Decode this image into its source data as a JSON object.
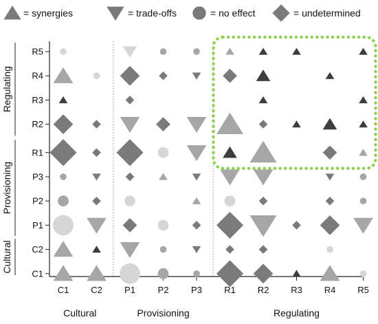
{
  "chart_data": {
    "type": "matrix-glyph",
    "legend": [
      {
        "shape": "triangle-up",
        "label": "= synergies"
      },
      {
        "shape": "triangle-down",
        "label": "= trade-offs"
      },
      {
        "shape": "circle",
        "label": "= no effect"
      },
      {
        "shape": "diamond",
        "label": "= undetermined"
      }
    ],
    "x_categories": [
      "C1",
      "C2",
      "P1",
      "P2",
      "P3",
      "R1",
      "R2",
      "R3",
      "R4",
      "R5"
    ],
    "x_groups": [
      {
        "label": "Cultural",
        "from": "C1",
        "to": "C2"
      },
      {
        "label": "Provisioning",
        "from": "P1",
        "to": "P3"
      },
      {
        "label": "Regulating",
        "from": "R1",
        "to": "R5"
      }
    ],
    "y_categories": [
      "R5",
      "R4",
      "R3",
      "R2",
      "R1",
      "P3",
      "P2",
      "P1",
      "C2",
      "C1"
    ],
    "y_groups": [
      {
        "label": "Regulating",
        "from": "R5",
        "to": "R2"
      },
      {
        "label": "Provisioning",
        "from": "P3",
        "to": "P1"
      },
      {
        "label": "Cultural",
        "from": "C2",
        "to": "C1"
      }
    ],
    "shade_colors": {
      "1": "#d6d6d6",
      "2": "#a6a6a6",
      "3": "#7a7a7a",
      "4": "#3d3d3d"
    },
    "highlight": {
      "x_from": "R1",
      "x_to": "R5",
      "y_from": "R5",
      "y_to": "R1",
      "color": "#8fd14f",
      "style": "dotted"
    },
    "cells": [
      {
        "row": "R5",
        "col": "C1",
        "shape": "circle",
        "size": 1,
        "shade": 1
      },
      {
        "row": "R5",
        "col": "P1",
        "shape": "triangle-down",
        "size": 2,
        "shade": 1
      },
      {
        "row": "R5",
        "col": "P2",
        "shape": "circle",
        "size": 1,
        "shade": 2
      },
      {
        "row": "R5",
        "col": "P3",
        "shape": "circle",
        "size": 1,
        "shade": 2
      },
      {
        "row": "R5",
        "col": "R1",
        "shape": "triangle-up",
        "size": 1,
        "shade": 2
      },
      {
        "row": "R5",
        "col": "R2",
        "shape": "triangle-up",
        "size": 1,
        "shade": 4
      },
      {
        "row": "R5",
        "col": "R3",
        "shape": "triangle-up",
        "size": 1,
        "shade": 4
      },
      {
        "row": "R5",
        "col": "R5",
        "shape": "triangle-up",
        "size": 1,
        "shade": 4
      },
      {
        "row": "R4",
        "col": "C1",
        "shape": "triangle-up",
        "size": 3,
        "shade": 2
      },
      {
        "row": "R4",
        "col": "C2",
        "shape": "circle",
        "size": 1,
        "shade": 1
      },
      {
        "row": "R4",
        "col": "P1",
        "shape": "diamond",
        "size": 3,
        "shade": 3
      },
      {
        "row": "R4",
        "col": "P2",
        "shape": "diamond",
        "size": 1,
        "shade": 3
      },
      {
        "row": "R4",
        "col": "P3",
        "shape": "triangle-down",
        "size": 1,
        "shade": 3
      },
      {
        "row": "R4",
        "col": "R1",
        "shape": "diamond",
        "size": 2,
        "shade": 3
      },
      {
        "row": "R4",
        "col": "R2",
        "shape": "triangle-up",
        "size": 2,
        "shade": 4
      },
      {
        "row": "R4",
        "col": "R4",
        "shape": "triangle-up",
        "size": 1,
        "shade": 4
      },
      {
        "row": "R3",
        "col": "C1",
        "shape": "triangle-up",
        "size": 1,
        "shade": 4
      },
      {
        "row": "R3",
        "col": "P1",
        "shape": "diamond",
        "size": 1,
        "shade": 3
      },
      {
        "row": "R3",
        "col": "R2",
        "shape": "triangle-up",
        "size": 1,
        "shade": 4
      },
      {
        "row": "R3",
        "col": "R5",
        "shape": "triangle-up",
        "size": 1,
        "shade": 4
      },
      {
        "row": "R2",
        "col": "C1",
        "shape": "diamond",
        "size": 3,
        "shade": 3
      },
      {
        "row": "R2",
        "col": "C2",
        "shape": "diamond",
        "size": 1,
        "shade": 3
      },
      {
        "row": "R2",
        "col": "P1",
        "shape": "triangle-down",
        "size": 3,
        "shade": 2
      },
      {
        "row": "R2",
        "col": "P2",
        "shape": "diamond",
        "size": 2,
        "shade": 3
      },
      {
        "row": "R2",
        "col": "P3",
        "shape": "triangle-down",
        "size": 3,
        "shade": 2
      },
      {
        "row": "R2",
        "col": "R1",
        "shape": "triangle-up",
        "size": 4,
        "shade": 2
      },
      {
        "row": "R2",
        "col": "R2",
        "shape": "diamond",
        "size": 1,
        "shade": 3
      },
      {
        "row": "R2",
        "col": "R3",
        "shape": "triangle-up",
        "size": 1,
        "shade": 4
      },
      {
        "row": "R2",
        "col": "R4",
        "shape": "triangle-up",
        "size": 2,
        "shade": 4
      },
      {
        "row": "R2",
        "col": "R5",
        "shape": "triangle-up",
        "size": 1,
        "shade": 4
      },
      {
        "row": "R1",
        "col": "C1",
        "shape": "diamond",
        "size": 4,
        "shade": 3
      },
      {
        "row": "R1",
        "col": "C2",
        "shape": "diamond",
        "size": 1,
        "shade": 3
      },
      {
        "row": "R1",
        "col": "P1",
        "shape": "diamond",
        "size": 4,
        "shade": 3
      },
      {
        "row": "R1",
        "col": "P2",
        "shape": "circle",
        "size": 2,
        "shade": 1
      },
      {
        "row": "R1",
        "col": "P3",
        "shape": "triangle-down",
        "size": 3,
        "shade": 2
      },
      {
        "row": "R1",
        "col": "R1",
        "shape": "triangle-up",
        "size": 2,
        "shade": 4
      },
      {
        "row": "R1",
        "col": "R2",
        "shape": "triangle-up",
        "size": 4,
        "shade": 2
      },
      {
        "row": "R1",
        "col": "R4",
        "shape": "diamond",
        "size": 2,
        "shade": 3
      },
      {
        "row": "R1",
        "col": "R5",
        "shape": "triangle-up",
        "size": 1,
        "shade": 2
      },
      {
        "row": "P3",
        "col": "C1",
        "shape": "circle",
        "size": 1,
        "shade": 2
      },
      {
        "row": "P3",
        "col": "C2",
        "shape": "triangle-down",
        "size": 1,
        "shade": 3
      },
      {
        "row": "P3",
        "col": "P1",
        "shape": "diamond",
        "size": 1,
        "shade": 3
      },
      {
        "row": "P3",
        "col": "P2",
        "shape": "triangle-up",
        "size": 1,
        "shade": 2
      },
      {
        "row": "P3",
        "col": "P3",
        "shape": "triangle-down",
        "size": 1,
        "shade": 3
      },
      {
        "row": "P3",
        "col": "R1",
        "shape": "triangle-down",
        "size": 3,
        "shade": 2
      },
      {
        "row": "P3",
        "col": "R2",
        "shape": "triangle-down",
        "size": 3,
        "shade": 2
      },
      {
        "row": "P3",
        "col": "R4",
        "shape": "triangle-down",
        "size": 1,
        "shade": 3
      },
      {
        "row": "P3",
        "col": "R5",
        "shape": "circle",
        "size": 1,
        "shade": 2
      },
      {
        "row": "P2",
        "col": "C1",
        "shape": "circle",
        "size": 2,
        "shade": 2
      },
      {
        "row": "P2",
        "col": "C2",
        "shape": "diamond",
        "size": 1,
        "shade": 3
      },
      {
        "row": "P2",
        "col": "P1",
        "shape": "circle",
        "size": 2,
        "shade": 1
      },
      {
        "row": "P2",
        "col": "P3",
        "shape": "triangle-up",
        "size": 1,
        "shade": 2
      },
      {
        "row": "P2",
        "col": "R1",
        "shape": "circle",
        "size": 2,
        "shade": 1
      },
      {
        "row": "P2",
        "col": "R2",
        "shape": "diamond",
        "size": 1,
        "shade": 3
      },
      {
        "row": "P2",
        "col": "R4",
        "shape": "diamond",
        "size": 1,
        "shade": 3
      },
      {
        "row": "P2",
        "col": "R5",
        "shape": "circle",
        "size": 1,
        "shade": 2
      },
      {
        "row": "P1",
        "col": "C1",
        "shape": "circle",
        "size": 4,
        "shade": 1
      },
      {
        "row": "P1",
        "col": "C2",
        "shape": "triangle-down",
        "size": 3,
        "shade": 2
      },
      {
        "row": "P1",
        "col": "P1",
        "shape": "diamond",
        "size": 2,
        "shade": 3
      },
      {
        "row": "P1",
        "col": "P2",
        "shape": "circle",
        "size": 2,
        "shade": 1
      },
      {
        "row": "P1",
        "col": "P3",
        "shape": "diamond",
        "size": 1,
        "shade": 3
      },
      {
        "row": "P1",
        "col": "R1",
        "shape": "diamond",
        "size": 4,
        "shade": 3
      },
      {
        "row": "P1",
        "col": "R2",
        "shape": "triangle-down",
        "size": 4,
        "shade": 2
      },
      {
        "row": "P1",
        "col": "R3",
        "shape": "diamond",
        "size": 1,
        "shade": 3
      },
      {
        "row": "P1",
        "col": "R4",
        "shape": "diamond",
        "size": 3,
        "shade": 3
      },
      {
        "row": "P1",
        "col": "R5",
        "shape": "triangle-down",
        "size": 3,
        "shade": 2
      },
      {
        "row": "C2",
        "col": "C1",
        "shape": "triangle-up",
        "size": 3,
        "shade": 2
      },
      {
        "row": "C2",
        "col": "C2",
        "shape": "triangle-up",
        "size": 1,
        "shade": 4
      },
      {
        "row": "C2",
        "col": "P1",
        "shape": "triangle-down",
        "size": 3,
        "shade": 2
      },
      {
        "row": "C2",
        "col": "P2",
        "shape": "circle",
        "size": 1,
        "shade": 2
      },
      {
        "row": "C2",
        "col": "P3",
        "shape": "triangle-down",
        "size": 1,
        "shade": 3
      },
      {
        "row": "C2",
        "col": "R1",
        "shape": "diamond",
        "size": 1,
        "shade": 3
      },
      {
        "row": "C2",
        "col": "R2",
        "shape": "diamond",
        "size": 1,
        "shade": 3
      },
      {
        "row": "C2",
        "col": "R4",
        "shape": "circle",
        "size": 1,
        "shade": 1
      },
      {
        "row": "C1",
        "col": "C1",
        "shape": "triangle-up",
        "size": 3,
        "shade": 2
      },
      {
        "row": "C1",
        "col": "C2",
        "shape": "triangle-up",
        "size": 3,
        "shade": 2
      },
      {
        "row": "C1",
        "col": "P1",
        "shape": "circle",
        "size": 4,
        "shade": 1
      },
      {
        "row": "C1",
        "col": "P2",
        "shape": "circle",
        "size": 2,
        "shade": 2
      },
      {
        "row": "C1",
        "col": "P3",
        "shape": "circle",
        "size": 1,
        "shade": 2
      },
      {
        "row": "C1",
        "col": "R1",
        "shape": "diamond",
        "size": 4,
        "shade": 3
      },
      {
        "row": "C1",
        "col": "R2",
        "shape": "diamond",
        "size": 3,
        "shade": 3
      },
      {
        "row": "C1",
        "col": "R3",
        "shape": "triangle-up",
        "size": 1,
        "shade": 4
      },
      {
        "row": "C1",
        "col": "R4",
        "shape": "triangle-up",
        "size": 3,
        "shade": 2
      },
      {
        "row": "C1",
        "col": "R5",
        "shape": "circle",
        "size": 1,
        "shade": 1
      }
    ]
  }
}
